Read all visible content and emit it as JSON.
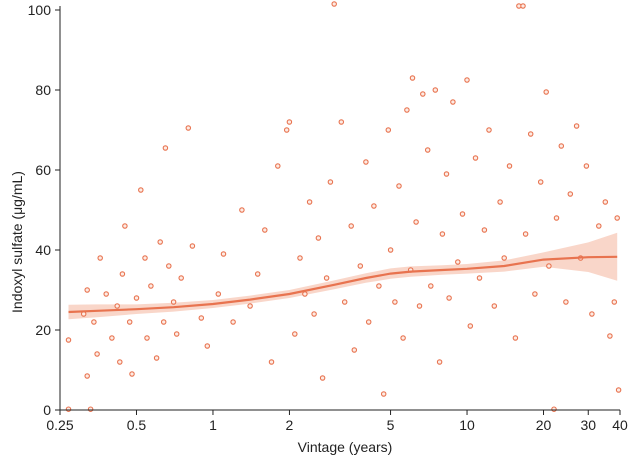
{
  "colors": {
    "accent": "#e8734f",
    "band": "#f4b49c",
    "axis": "#222222",
    "point_fill": "#fdebe4"
  },
  "chart_data": {
    "type": "scatter",
    "title": "",
    "xlabel": "Vintage (years)",
    "ylabel": "Indoxyl sulfate (μg/mL)",
    "x_scale": "log",
    "xlim": [
      0.25,
      40
    ],
    "ylim": [
      0,
      100
    ],
    "x_ticks": [
      0.25,
      0.5,
      1,
      2,
      5,
      10,
      20,
      30,
      40
    ],
    "x_tick_labels": [
      "0.25",
      "0.5",
      "1",
      "2",
      "5",
      "10",
      "20",
      "30",
      "40"
    ],
    "y_ticks": [
      0,
      20,
      40,
      60,
      80,
      100
    ],
    "y_tick_labels": [
      "0",
      "20",
      "40",
      "60",
      "80",
      "100"
    ],
    "grid": false,
    "legend": "none",
    "series": [
      {
        "kind": "points",
        "points": [
          [
            0.27,
            17.5
          ],
          [
            0.27,
            0.2
          ],
          [
            0.31,
            24
          ],
          [
            0.32,
            30
          ],
          [
            0.32,
            8.5
          ],
          [
            0.33,
            0.2
          ],
          [
            0.34,
            22
          ],
          [
            0.35,
            14
          ],
          [
            0.36,
            38
          ],
          [
            0.38,
            29
          ],
          [
            0.4,
            18
          ],
          [
            0.42,
            26
          ],
          [
            0.43,
            12
          ],
          [
            0.44,
            34
          ],
          [
            0.45,
            46
          ],
          [
            0.47,
            22
          ],
          [
            0.48,
            9
          ],
          [
            0.5,
            28
          ],
          [
            0.52,
            55
          ],
          [
            0.54,
            38
          ],
          [
            0.55,
            18
          ],
          [
            0.57,
            31
          ],
          [
            0.6,
            13
          ],
          [
            0.62,
            42
          ],
          [
            0.64,
            22
          ],
          [
            0.65,
            65.5
          ],
          [
            0.67,
            36
          ],
          [
            0.7,
            27
          ],
          [
            0.72,
            19
          ],
          [
            0.75,
            33
          ],
          [
            0.8,
            70.5
          ],
          [
            0.83,
            41
          ],
          [
            0.9,
            23
          ],
          [
            0.95,
            16
          ],
          [
            1.05,
            29
          ],
          [
            1.1,
            39
          ],
          [
            1.2,
            22
          ],
          [
            1.3,
            50
          ],
          [
            1.4,
            26
          ],
          [
            1.5,
            34
          ],
          [
            1.6,
            45
          ],
          [
            1.7,
            12
          ],
          [
            1.8,
            61
          ],
          [
            1.95,
            70
          ],
          [
            2.0,
            72
          ],
          [
            2.1,
            19
          ],
          [
            2.2,
            38
          ],
          [
            2.3,
            29
          ],
          [
            2.4,
            52
          ],
          [
            2.5,
            24
          ],
          [
            2.6,
            43
          ],
          [
            2.7,
            8
          ],
          [
            2.8,
            33
          ],
          [
            2.9,
            57
          ],
          [
            3.0,
            101.5
          ],
          [
            3.2,
            72
          ],
          [
            3.3,
            27
          ],
          [
            3.5,
            46
          ],
          [
            3.6,
            15
          ],
          [
            3.8,
            36
          ],
          [
            4.0,
            62
          ],
          [
            4.1,
            22
          ],
          [
            4.3,
            51
          ],
          [
            4.5,
            31
          ],
          [
            4.7,
            4
          ],
          [
            4.9,
            70
          ],
          [
            5.0,
            40
          ],
          [
            5.2,
            27
          ],
          [
            5.4,
            56
          ],
          [
            5.6,
            18
          ],
          [
            5.8,
            75
          ],
          [
            6.0,
            35
          ],
          [
            6.1,
            83
          ],
          [
            6.3,
            47
          ],
          [
            6.5,
            26
          ],
          [
            6.7,
            79
          ],
          [
            7.0,
            65
          ],
          [
            7.2,
            31
          ],
          [
            7.5,
            80
          ],
          [
            7.8,
            12
          ],
          [
            8.0,
            44
          ],
          [
            8.3,
            59
          ],
          [
            8.5,
            28
          ],
          [
            8.8,
            77
          ],
          [
            9.2,
            37
          ],
          [
            9.6,
            49
          ],
          [
            10.0,
            82.5
          ],
          [
            10.3,
            21
          ],
          [
            10.8,
            63
          ],
          [
            11.2,
            33
          ],
          [
            11.7,
            45
          ],
          [
            12.2,
            70
          ],
          [
            12.8,
            26
          ],
          [
            13.5,
            52
          ],
          [
            14.0,
            38
          ],
          [
            14.7,
            61
          ],
          [
            15.5,
            18
          ],
          [
            16.0,
            101
          ],
          [
            16.6,
            101
          ],
          [
            17.0,
            44
          ],
          [
            17.8,
            69
          ],
          [
            18.5,
            29
          ],
          [
            19.5,
            57
          ],
          [
            20.5,
            79.5
          ],
          [
            21.0,
            36
          ],
          [
            22.0,
            0.2
          ],
          [
            22.5,
            48
          ],
          [
            23.5,
            66
          ],
          [
            24.5,
            27
          ],
          [
            25.5,
            54
          ],
          [
            27.0,
            71
          ],
          [
            28.0,
            38
          ],
          [
            29.5,
            61
          ],
          [
            31.0,
            24
          ],
          [
            33.0,
            46
          ],
          [
            35.0,
            52
          ],
          [
            36.5,
            18.5
          ],
          [
            38.0,
            27
          ],
          [
            39.0,
            48
          ],
          [
            39.5,
            5
          ]
        ]
      },
      {
        "kind": "trend",
        "x": [
          0.27,
          0.35,
          0.5,
          0.7,
          1,
          1.4,
          2,
          3,
          4,
          5,
          6,
          8,
          10,
          14,
          20,
          30,
          39
        ],
        "y": [
          24.5,
          24.8,
          25.2,
          25.7,
          26.5,
          27.6,
          29,
          31.3,
          33,
          34.1,
          34.6,
          35,
          35.3,
          36,
          37.6,
          38.2,
          38.3
        ],
        "lower": [
          22.7,
          23.2,
          24,
          24.6,
          25.5,
          26.6,
          28,
          30.2,
          31.8,
          32.8,
          33.3,
          33.8,
          34.1,
          34.6,
          35.8,
          34.5,
          32.3
        ],
        "upper": [
          26.3,
          26.4,
          26.4,
          26.8,
          27.5,
          28.6,
          30,
          32.4,
          34.2,
          35.4,
          35.9,
          36.2,
          36.5,
          37.4,
          39.4,
          41.9,
          44.3
        ]
      }
    ]
  }
}
